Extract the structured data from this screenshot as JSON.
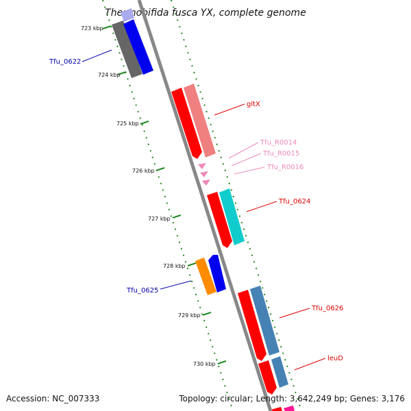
{
  "title": "Thermobifida fusca YX, complete genome",
  "footer": {
    "accession": "Accession: NC_007333",
    "summary": "Topology: circular; Length: 3,642,249 bp; Genes: 3,176"
  },
  "scale_labels": [
    "723 kbp",
    "724 kbp",
    "725 kbp",
    "726 kbp",
    "727 kbp",
    "728 kbp",
    "729 kbp",
    "730 kbp"
  ],
  "gene_labels": [
    {
      "id": "Tfu_0622",
      "text": "Tfu_0622",
      "color": "#0000aa"
    },
    {
      "id": "gltX",
      "text": "gltX",
      "color": "#dd0000"
    },
    {
      "id": "Tfu_R0014",
      "text": "Tfu_R0014",
      "color": "#ee88bb"
    },
    {
      "id": "Tfu_R0015",
      "text": "Tfu_R0015",
      "color": "#ee88bb"
    },
    {
      "id": "Tfu_R0016",
      "text": "Tfu_R0016",
      "color": "#ee88bb"
    },
    {
      "id": "Tfu_0624",
      "text": "Tfu_0624",
      "color": "#dd0000"
    },
    {
      "id": "Tfu_0625",
      "text": "Tfu_0625",
      "color": "#0000aa"
    },
    {
      "id": "Tfu_0626",
      "text": "Tfu_0626",
      "color": "#dd0000"
    },
    {
      "id": "leuD",
      "text": "leuD",
      "color": "#dd0000"
    }
  ],
  "colors": {
    "backbone": "#8a8a8a",
    "tick": "#228822",
    "cds_forward": "#ff0000",
    "rrna_or_trna": "#ee88bb",
    "blue": "#0000ee",
    "salmon": "#f08080",
    "cyan": "#11cccc",
    "steelblue": "#4682b4",
    "orange": "#ff8c00",
    "gray": "#666666"
  }
}
